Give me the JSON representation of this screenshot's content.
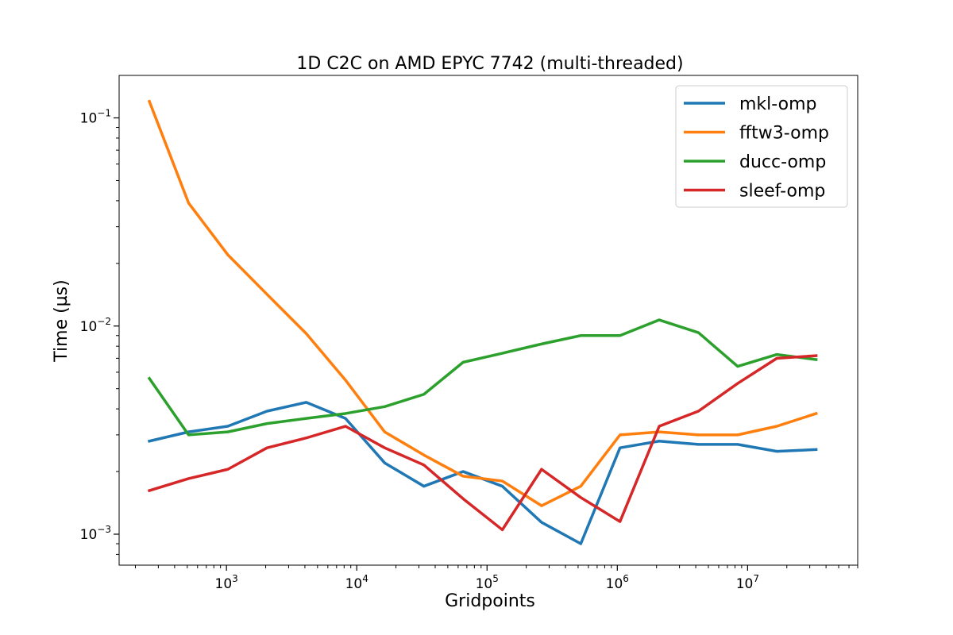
{
  "chart_data": {
    "type": "line",
    "title": "1D C2C on AMD EPYC 7742 (multi-threaded)",
    "xlabel": "Gridpoints",
    "ylabel": "Time (µs)",
    "xscale": "log",
    "yscale": "log",
    "xlim": [
      150,
      70000000
    ],
    "ylim": [
      0.00071,
      0.16
    ],
    "grid": false,
    "legend_position": "top-right",
    "x": [
      256,
      512,
      1024,
      2048,
      4096,
      8192,
      16384,
      32768,
      65536,
      131072,
      262144,
      524288,
      1048576,
      2097152,
      4194304,
      8388608,
      16777216,
      33554432
    ],
    "x_tick_labels": [
      {
        "value": 1000,
        "base": "10",
        "exp": "3"
      },
      {
        "value": 10000,
        "base": "10",
        "exp": "4"
      },
      {
        "value": 100000,
        "base": "10",
        "exp": "5"
      },
      {
        "value": 1000000,
        "base": "10",
        "exp": "6"
      },
      {
        "value": 10000000,
        "base": "10",
        "exp": "7"
      }
    ],
    "y_tick_labels": [
      {
        "value": 0.1,
        "base": "10",
        "exp": "−1"
      },
      {
        "value": 0.01,
        "base": "10",
        "exp": "−2"
      },
      {
        "value": 0.001,
        "base": "10",
        "exp": "−3"
      }
    ],
    "series": [
      {
        "name": "mkl-omp",
        "color": "#1f77b4",
        "values": [
          0.0028,
          0.0031,
          0.0033,
          0.0039,
          0.0043,
          0.0036,
          0.0022,
          0.0017,
          0.002,
          0.0017,
          0.00114,
          0.0009,
          0.0026,
          0.0028,
          0.0027,
          0.0027,
          0.0025,
          0.00255
        ]
      },
      {
        "name": "fftw3-omp",
        "color": "#ff7f0e",
        "values": [
          0.12,
          0.039,
          0.022,
          0.0142,
          0.0092,
          0.0055,
          0.0031,
          0.0024,
          0.0019,
          0.0018,
          0.00137,
          0.0017,
          0.003,
          0.0031,
          0.003,
          0.003,
          0.0033,
          0.0038
        ]
      },
      {
        "name": "ducc-omp",
        "color": "#2ca02c",
        "values": [
          0.0056,
          0.003,
          0.0031,
          0.0034,
          0.0036,
          0.0038,
          0.0041,
          0.0047,
          0.0067,
          0.0074,
          0.0082,
          0.009,
          0.009,
          0.0107,
          0.0093,
          0.0064,
          0.0073,
          0.0069
        ]
      },
      {
        "name": "sleef-omp",
        "color": "#d62728",
        "values": [
          0.00162,
          0.00185,
          0.00205,
          0.0026,
          0.0029,
          0.0033,
          0.0026,
          0.00215,
          0.00148,
          0.00105,
          0.00205,
          0.0015,
          0.00115,
          0.0033,
          0.0039,
          0.0053,
          0.007,
          0.0072
        ]
      }
    ]
  }
}
